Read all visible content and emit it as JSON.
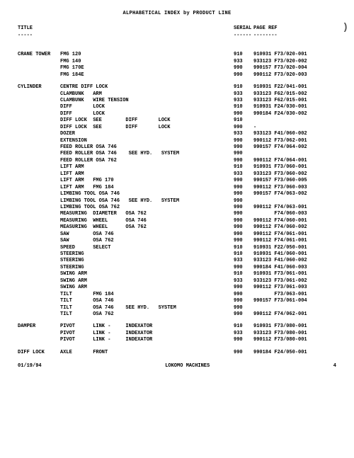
{
  "page_title": "ALPHABETICAL INDEX by PRODUCT LINE",
  "headers": {
    "title": "TITLE",
    "serial": "SERIAL",
    "pageref": "PAGE REF"
  },
  "dashes": {
    "title": "-----",
    "serial": "------",
    "pageref": "--------"
  },
  "rows": [
    {
      "t": "CRANE TOWER",
      "d": "FMG 120",
      "s": "910",
      "p": "910931 F73/020-001"
    },
    {
      "t": "",
      "d": "FMG 140",
      "s": "933",
      "p": "933123 F73/020-002"
    },
    {
      "t": "",
      "d": "FMG 170E",
      "s": "990",
      "p": "990157 F73/020-004"
    },
    {
      "t": "",
      "d": "FMG 184E",
      "s": "990",
      "p": "990112 F73/020-003"
    },
    {
      "spacer": true
    },
    {
      "t": "CYLINDER",
      "d": "CENTRE DIFF LOCK",
      "s": "910",
      "p": "910931 F22/041-001"
    },
    {
      "t": "",
      "d": "CLAMBUNK   ARM",
      "s": "933",
      "p": "933123 F62/015-002"
    },
    {
      "t": "",
      "d": "CLAMBUNK   WIRE TENSION",
      "s": "933",
      "p": "933123 F62/015-001"
    },
    {
      "t": "",
      "d": "DIFF       LOCK",
      "s": "910",
      "p": "910931 F24/030-001"
    },
    {
      "t": "",
      "d": "DIFF       LOCK",
      "s": "990",
      "p": "990184 F24/030-002"
    },
    {
      "t": "",
      "d": "DIFF LOCK  SEE        DIFF       LOCK",
      "s": "910",
      "p": ""
    },
    {
      "t": "",
      "d": "DIFF LOCK  SEE        DIFF       LOCK",
      "s": "990",
      "p": "-"
    },
    {
      "t": "",
      "d": "DOZER",
      "s": "933",
      "p": "933123 F41/060-002"
    },
    {
      "t": "",
      "d": "EXTENSION",
      "s": "990",
      "p": "990112 F73/062-001"
    },
    {
      "t": "",
      "d": "FEED ROLLER OSA 746",
      "s": "990",
      "p": "990157 F74/064-002"
    },
    {
      "t": "",
      "d": "FEED ROLLER OSA 746    SEE HYD.   SYSTEM",
      "s": "990",
      "p": ""
    },
    {
      "t": "",
      "d": "FEED ROLLER OSA 762",
      "s": "990",
      "p": "990112 F74/064-001"
    },
    {
      "t": "",
      "d": "LIFT ARM",
      "s": "910",
      "p": "910931 F73/060-001"
    },
    {
      "t": "",
      "d": "LIFT ARM",
      "s": "933",
      "p": "933123 F73/060-002"
    },
    {
      "t": "",
      "d": "LIFT ARM   FMG 170",
      "s": "990",
      "p": "990157 F73/060-005"
    },
    {
      "t": "",
      "d": "LIFT ARM   FMG 184",
      "s": "990",
      "p": "990112 F73/060-003"
    },
    {
      "t": "",
      "d": "LIMBING TOOL OSA 746",
      "s": "990",
      "p": "990157 F74/063-002"
    },
    {
      "t": "",
      "d": "LIMBING TOOL OSA 746   SEE HYD.   SYSTEM",
      "s": "990",
      "p": ""
    },
    {
      "t": "",
      "d": "LIMBING TOOL OSA 762",
      "s": "990",
      "p": "990112 F74/063-001"
    },
    {
      "t": "",
      "d": "MEASURING  DIAMETER   OSA 762",
      "s": "990",
      "p": "       F74/060-003"
    },
    {
      "t": "",
      "d": "MEASURING  WHEEL      OSA 746",
      "s": "990",
      "p": "990112 F74/060-001"
    },
    {
      "t": "",
      "d": "MEASURING  WHEEL      OSA 762",
      "s": "990",
      "p": "990112 F74/060-002"
    },
    {
      "t": "",
      "d": "SAW        OSA 746",
      "s": "990",
      "p": "990112 F74/061-001"
    },
    {
      "t": "",
      "d": "SAW        OSA 762",
      "s": "990",
      "p": "990112 F74/061-001"
    },
    {
      "t": "",
      "d": "SPEED      SELECT",
      "s": "910",
      "p": "910931 F22/050-001"
    },
    {
      "t": "",
      "d": "STEERING",
      "s": "910",
      "p": "910931 F41/060-001"
    },
    {
      "t": "",
      "d": "STEERING",
      "s": "933",
      "p": "933123 F41/060-002"
    },
    {
      "t": "",
      "d": "STEERING",
      "s": "990",
      "p": "990184 F41/060-003"
    },
    {
      "t": "",
      "d": "SWING ARM",
      "s": "910",
      "p": "910931 F73/061-001"
    },
    {
      "t": "",
      "d": "SWING ARM",
      "s": "933",
      "p": "933123 F73/061-002"
    },
    {
      "t": "",
      "d": "SWING ARM",
      "s": "990",
      "p": "990112 F73/061-003"
    },
    {
      "t": "",
      "d": "TILT       FMG 184",
      "s": "990",
      "p": "       F73/063-001"
    },
    {
      "t": "",
      "d": "TILT       OSA 746",
      "s": "990",
      "p": "990157 F73/061-004"
    },
    {
      "t": "",
      "d": "TILT       OSA 746    SEE HYD.   SYSTEM",
      "s": "990",
      "p": ""
    },
    {
      "t": "",
      "d": "TILT       OSA 762",
      "s": "990",
      "p": "990112 F74/062-001"
    },
    {
      "spacer": true
    },
    {
      "t": "DAMPER",
      "d": "PIVOT      LINK -     INDEXATOR",
      "s": "910",
      "p": "910931 F73/080-001"
    },
    {
      "t": "",
      "d": "PIVOT      LINK -     INDEXATOR",
      "s": "933",
      "p": "933123 F73/080-001"
    },
    {
      "t": "",
      "d": "PIVOT      LINK -     INDEXATOR",
      "s": "990",
      "p": "990112 F73/080-001"
    },
    {
      "spacer": true
    },
    {
      "t": "DIFF LOCK",
      "d": "AXLE       FRONT",
      "s": "990",
      "p": "990184 F24/050-001"
    }
  ],
  "footer": {
    "date": "01/19/94",
    "company": "LOKOMO MACHINES",
    "page": "4"
  }
}
